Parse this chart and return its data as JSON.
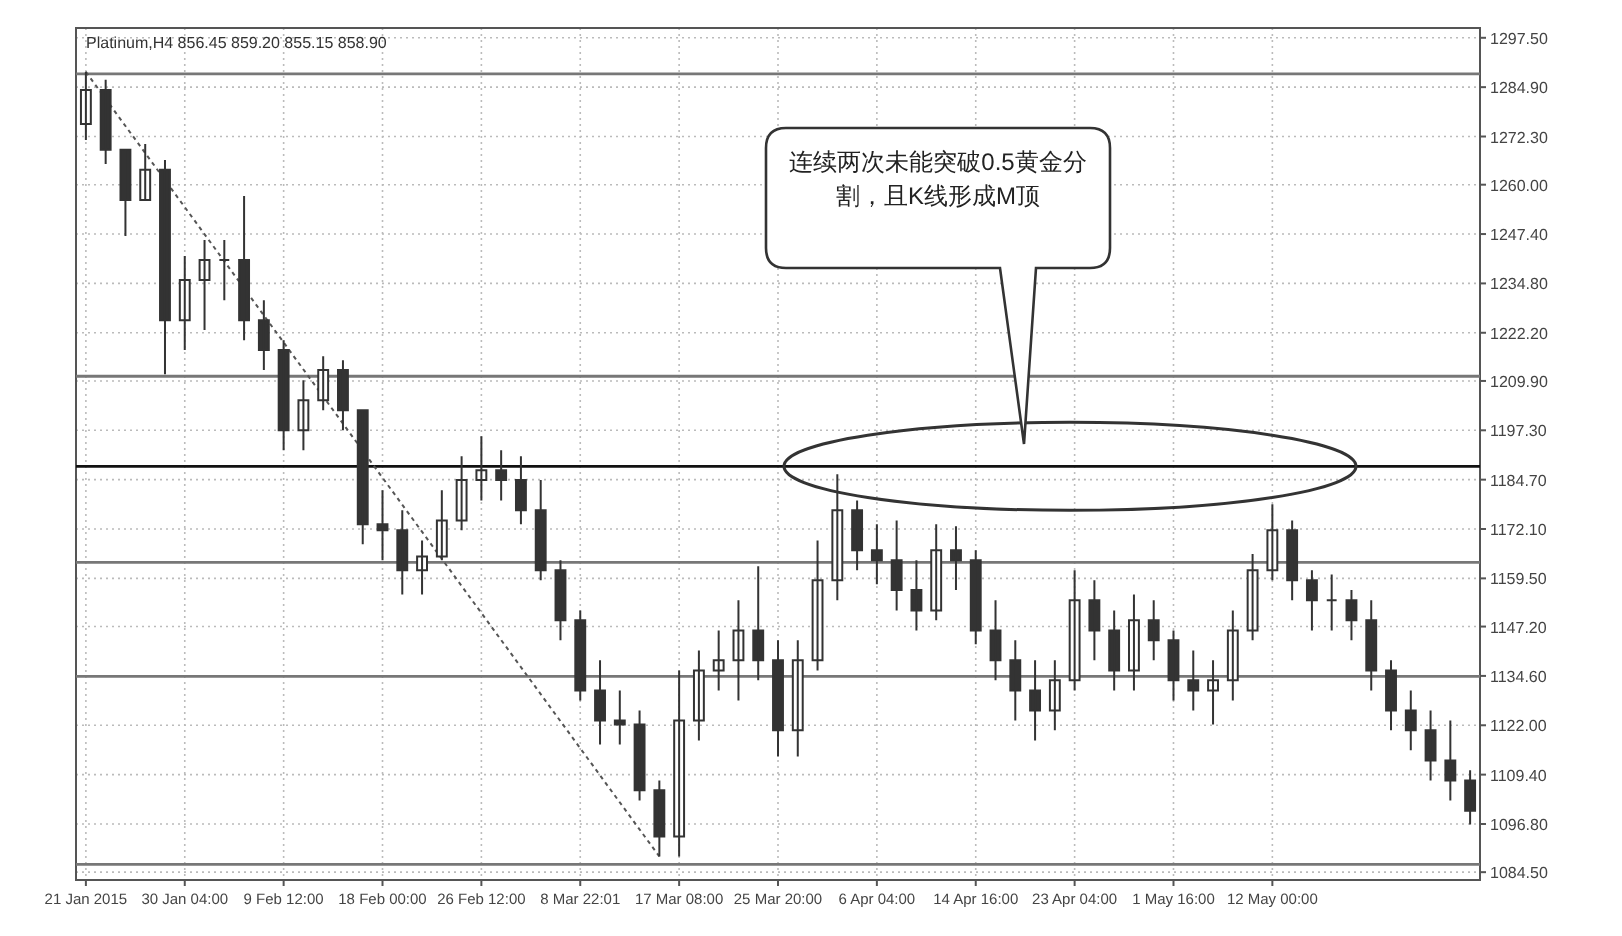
{
  "chart_data": {
    "type": "candlestick",
    "title": "Platinum,H4  856.45 859.20 855.15 858.90",
    "categories": [
      "21 Jan 2015",
      null,
      null,
      null,
      null,
      "30 Jan 04:00",
      null,
      null,
      null,
      null,
      "9 Feb 12:00",
      null,
      null,
      null,
      null,
      "18 Feb 00:00",
      null,
      null,
      null,
      null,
      "26 Feb 12:00",
      null,
      null,
      null,
      null,
      "8 Mar 22:01",
      null,
      null,
      null,
      null,
      "17 Mar 08:00",
      null,
      null,
      null,
      null,
      "25 Mar 20:00",
      null,
      null,
      null,
      null,
      "6 Apr 04:00",
      null,
      null,
      null,
      null,
      "14 Apr 16:00",
      null,
      null,
      null,
      null,
      "23 Apr 04:00",
      null,
      null,
      null,
      null,
      "1 May 16:00",
      null,
      null,
      null,
      null,
      "12 May 00:00",
      null,
      null,
      null,
      null,
      null,
      null,
      null,
      null,
      null,
      null
    ],
    "ohlc": [
      [
        1275.5,
        1288.8,
        1271.4,
        1284.2
      ],
      [
        1284.2,
        1286.8,
        1265.3,
        1268.9
      ],
      [
        1268.9,
        1268.9,
        1246.9,
        1256.1
      ],
      [
        1256.1,
        1270.4,
        1256.1,
        1263.8
      ],
      [
        1263.8,
        1266.3,
        1211.6,
        1225.4
      ],
      [
        1225.4,
        1241.8,
        1217.8,
        1235.7
      ],
      [
        1235.7,
        1245.9,
        1222.9,
        1240.8
      ],
      [
        1240.8,
        1245.9,
        1230.5,
        1240.8
      ],
      [
        1240.8,
        1257.1,
        1220.3,
        1225.4
      ],
      [
        1225.4,
        1230.5,
        1212.7,
        1217.8
      ],
      [
        1217.8,
        1220.3,
        1192.2,
        1197.3
      ],
      [
        1197.3,
        1210.1,
        1192.2,
        1205.0
      ],
      [
        1205.0,
        1216.2,
        1202.4,
        1212.7
      ],
      [
        1212.7,
        1215.2,
        1197.3,
        1202.4
      ],
      [
        1202.4,
        1202.4,
        1168.2,
        1173.3
      ],
      [
        1173.3,
        1182.0,
        1164.1,
        1171.8
      ],
      [
        1171.8,
        1176.9,
        1155.4,
        1161.6
      ],
      [
        1161.6,
        1169.2,
        1155.4,
        1165.1
      ],
      [
        1165.1,
        1182.0,
        1164.1,
        1174.3
      ],
      [
        1174.3,
        1190.7,
        1171.8,
        1184.6
      ],
      [
        1184.6,
        1195.8,
        1179.4,
        1187.1
      ],
      [
        1187.1,
        1192.2,
        1179.4,
        1184.6
      ],
      [
        1184.6,
        1190.7,
        1173.3,
        1176.9
      ],
      [
        1176.9,
        1184.6,
        1159.0,
        1161.6
      ],
      [
        1161.6,
        1164.1,
        1143.7,
        1148.8
      ],
      [
        1148.8,
        1151.3,
        1128.3,
        1130.9
      ],
      [
        1130.9,
        1138.6,
        1117.1,
        1123.2
      ],
      [
        1123.2,
        1130.9,
        1117.1,
        1122.2
      ],
      [
        1122.2,
        1125.8,
        1102.8,
        1105.4
      ],
      [
        1105.4,
        1107.9,
        1088.5,
        1093.6
      ],
      [
        1093.6,
        1136.0,
        1088.5,
        1123.2
      ],
      [
        1123.2,
        1141.1,
        1118.1,
        1136.0
      ],
      [
        1136.0,
        1146.2,
        1130.9,
        1138.6
      ],
      [
        1138.6,
        1153.9,
        1128.3,
        1146.2
      ],
      [
        1146.2,
        1162.6,
        1133.5,
        1138.6
      ],
      [
        1138.6,
        1143.7,
        1114.0,
        1120.7
      ],
      [
        1120.7,
        1143.7,
        1114.0,
        1138.6
      ],
      [
        1138.6,
        1169.2,
        1136.0,
        1159.0
      ],
      [
        1159.0,
        1186.1,
        1153.9,
        1176.9
      ],
      [
        1176.9,
        1179.4,
        1161.6,
        1166.7
      ],
      [
        1166.7,
        1173.3,
        1158.0,
        1164.1
      ],
      [
        1164.1,
        1174.3,
        1151.3,
        1156.5
      ],
      [
        1156.5,
        1164.1,
        1146.2,
        1151.3
      ],
      [
        1151.3,
        1173.3,
        1148.8,
        1166.7
      ],
      [
        1166.7,
        1172.8,
        1156.5,
        1164.1
      ],
      [
        1164.1,
        1166.7,
        1142.7,
        1146.2
      ],
      [
        1146.2,
        1153.9,
        1133.5,
        1138.6
      ],
      [
        1138.6,
        1143.7,
        1123.2,
        1130.9
      ],
      [
        1130.9,
        1138.6,
        1118.1,
        1125.8
      ],
      [
        1125.8,
        1138.6,
        1120.7,
        1133.5
      ],
      [
        1133.5,
        1161.6,
        1130.9,
        1153.9
      ],
      [
        1153.9,
        1159.0,
        1138.6,
        1146.2
      ],
      [
        1146.2,
        1151.3,
        1130.9,
        1136.0
      ],
      [
        1136.0,
        1155.4,
        1130.9,
        1148.8
      ],
      [
        1148.8,
        1153.9,
        1138.6,
        1143.7
      ],
      [
        1143.7,
        1146.2,
        1128.3,
        1133.5
      ],
      [
        1133.5,
        1141.1,
        1125.8,
        1130.9
      ],
      [
        1130.9,
        1138.6,
        1122.2,
        1133.5
      ],
      [
        1133.5,
        1151.3,
        1128.3,
        1146.2
      ],
      [
        1146.2,
        1165.7,
        1143.7,
        1161.6
      ],
      [
        1161.6,
        1178.4,
        1159.0,
        1171.8
      ],
      [
        1171.8,
        1174.3,
        1153.9,
        1159.0
      ],
      [
        1159.0,
        1161.6,
        1146.2,
        1153.9
      ],
      [
        1153.9,
        1160.5,
        1146.2,
        1153.9
      ],
      [
        1153.9,
        1156.5,
        1143.7,
        1148.8
      ],
      [
        1148.8,
        1153.9,
        1130.9,
        1136.0
      ],
      [
        1136.0,
        1138.6,
        1120.7,
        1125.8
      ],
      [
        1125.8,
        1130.9,
        1115.6,
        1120.7
      ],
      [
        1120.7,
        1125.8,
        1107.9,
        1113.0
      ],
      [
        1113.0,
        1123.2,
        1102.8,
        1107.9
      ],
      [
        1107.9,
        1110.5,
        1096.7,
        1100.2
      ]
    ],
    "color": "#333333",
    "series": [
      {
        "type": "line",
        "values": [
          1288.8,
          null,
          null,
          null,
          null,
          null,
          null,
          null,
          null,
          null,
          null,
          null,
          null,
          null,
          null,
          null,
          null,
          null,
          null,
          null,
          null,
          null,
          null,
          null,
          null,
          null,
          null,
          null,
          null,
          1088.5,
          null,
          null,
          null,
          null,
          null,
          null,
          null,
          null,
          null,
          null,
          null,
          null,
          null,
          null,
          null,
          null,
          null,
          null,
          null,
          null,
          null,
          null,
          null,
          null,
          null,
          null,
          null,
          null,
          null,
          null,
          null,
          null,
          null,
          null,
          null,
          null,
          null,
          null,
          null,
          null,
          null
        ],
        "color": "#555555",
        "line_style": "dotted"
      }
    ],
    "ylim": [
      1082.5,
      1300
    ],
    "yticks": [
      {
        "value": 1297.5,
        "label": "1297.50"
      },
      {
        "value": 1284.9,
        "label": "1284.90"
      },
      {
        "value": 1272.3,
        "label": "1272.30"
      },
      {
        "value": 1260.0,
        "label": "1260.00"
      },
      {
        "value": 1247.4,
        "label": "1247.40"
      },
      {
        "value": 1234.8,
        "label": "1234.80"
      },
      {
        "value": 1222.2,
        "label": "1222.20"
      },
      {
        "value": 1209.9,
        "label": "1209.90"
      },
      {
        "value": 1197.3,
        "label": "1197.30"
      },
      {
        "value": 1184.7,
        "label": "1184.70"
      },
      {
        "value": 1172.1,
        "label": "1172.10"
      },
      {
        "value": 1159.5,
        "label": "1159.50"
      },
      {
        "value": 1147.2,
        "label": "1147.20"
      },
      {
        "value": 1134.6,
        "label": "1134.60"
      },
      {
        "value": 1122.0,
        "label": "1122.00"
      },
      {
        "value": 1109.4,
        "label": "1109.40"
      },
      {
        "value": 1096.8,
        "label": "1096.80"
      },
      {
        "value": 1084.5,
        "label": "1084.50"
      }
    ],
    "grid": true,
    "ref_lines": [
      {
        "axis": "y",
        "value": 1288.3,
        "color": "#777777"
      },
      {
        "axis": "y",
        "value": 1211.1,
        "color": "#777777"
      },
      {
        "axis": "y",
        "value": 1188.1,
        "color": "#111111"
      },
      {
        "axis": "y",
        "value": 1163.6,
        "color": "#777777"
      },
      {
        "axis": "y",
        "value": 1134.5,
        "color": "#777777"
      },
      {
        "axis": "y",
        "value": 1086.5,
        "color": "#777777"
      }
    ],
    "annotations": [
      "连续两次未能突破0.5黄金分割，且K线形成M顶"
    ]
  }
}
